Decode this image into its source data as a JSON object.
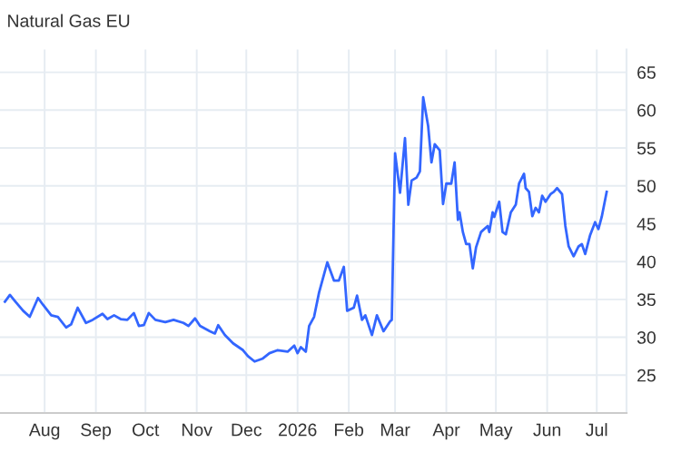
{
  "chart_data": {
    "type": "line",
    "title": "Natural Gas EU",
    "x": [
      "2025-07-08",
      "2025-07-11",
      "2025-07-14",
      "2025-07-19",
      "2025-07-23",
      "2025-07-28",
      "2025-07-31",
      "2025-08-05",
      "2025-08-09",
      "2025-08-14",
      "2025-08-17",
      "2025-08-21",
      "2025-08-26",
      "2025-08-30",
      "2025-09-05",
      "2025-09-08",
      "2025-09-12",
      "2025-09-16",
      "2025-09-20",
      "2025-09-24",
      "2025-09-27",
      "2025-09-30",
      "2025-10-03",
      "2025-10-07",
      "2025-10-13",
      "2025-10-18",
      "2025-10-24",
      "2025-10-27",
      "2025-10-31",
      "2025-11-03",
      "2025-11-09",
      "2025-11-12",
      "2025-11-14",
      "2025-11-18",
      "2025-11-23",
      "2025-11-29",
      "2025-12-02",
      "2025-12-06",
      "2025-12-11",
      "2025-12-15",
      "2025-12-20",
      "2025-12-26",
      "2025-12-30",
      "2026-01-01",
      "2026-01-03",
      "2026-01-06",
      "2026-01-08",
      "2026-01-11",
      "2026-01-14",
      "2026-01-17",
      "2026-01-19",
      "2026-01-21",
      "2026-01-23",
      "2026-01-26",
      "2026-01-29",
      "2026-01-31",
      "2026-02-04",
      "2026-02-06",
      "2026-02-09",
      "2026-02-11",
      "2026-02-15",
      "2026-02-18",
      "2026-02-22",
      "2026-02-26",
      "2026-02-27",
      "2026-03-01",
      "2026-03-04",
      "2026-03-07",
      "2026-03-09",
      "2026-03-11",
      "2026-03-14",
      "2026-03-16",
      "2026-03-18",
      "2026-03-21",
      "2026-03-23",
      "2026-03-25",
      "2026-03-28",
      "2026-03-30",
      "2026-04-01",
      "2026-04-04",
      "2026-04-06",
      "2026-04-08",
      "2026-04-09",
      "2026-04-11",
      "2026-04-13",
      "2026-04-15",
      "2026-04-17",
      "2026-04-19",
      "2026-04-22",
      "2026-04-26",
      "2026-04-27",
      "2026-04-29",
      "2026-04-30",
      "2026-05-03",
      "2026-05-05",
      "2026-05-07",
      "2026-05-10",
      "2026-05-13",
      "2026-05-15",
      "2026-05-18",
      "2026-05-19",
      "2026-05-21",
      "2026-05-23",
      "2026-05-25",
      "2026-05-27",
      "2026-05-29",
      "2026-05-31",
      "2026-06-03",
      "2026-06-05",
      "2026-06-07",
      "2026-06-10",
      "2026-06-12",
      "2026-06-14",
      "2026-06-17",
      "2026-06-20",
      "2026-06-22",
      "2026-06-24",
      "2026-06-27",
      "2026-06-30",
      "2026-07-02",
      "2026-07-04",
      "2026-07-07"
    ],
    "series": [
      {
        "color": "#3366ff",
        "values": [
          34.7,
          35.6,
          34.8,
          33.5,
          32.7,
          35.2,
          34.3,
          32.9,
          32.7,
          31.3,
          31.7,
          33.9,
          31.9,
          32.3,
          33.1,
          32.4,
          32.9,
          32.4,
          32.3,
          33.2,
          31.5,
          31.6,
          33.2,
          32.3,
          32.0,
          32.3,
          31.9,
          31.5,
          32.5,
          31.5,
          30.8,
          30.5,
          31.6,
          30.3,
          29.2,
          28.3,
          27.5,
          26.8,
          27.2,
          27.9,
          28.3,
          28.1,
          28.9,
          27.9,
          28.7,
          28.1,
          31.5,
          32.7,
          35.9,
          38.3,
          39.9,
          38.7,
          37.5,
          37.5,
          39.3,
          33.5,
          33.9,
          35.5,
          32.3,
          32.9,
          30.3,
          32.9,
          30.8,
          32.1,
          32.3,
          54.3,
          49.1,
          56.3,
          47.5,
          50.7,
          51.1,
          51.9,
          61.7,
          57.9,
          53.1,
          55.5,
          54.7,
          47.6,
          50.3,
          50.3,
          53.1,
          45.5,
          46.5,
          43.9,
          42.3,
          42.3,
          39.1,
          41.9,
          43.9,
          44.7,
          43.9,
          46.5,
          45.9,
          47.9,
          43.9,
          43.6,
          46.5,
          47.5,
          50.3,
          51.6,
          49.7,
          49.2,
          46.0,
          47.1,
          46.5,
          48.7,
          47.9,
          48.9,
          49.2,
          49.7,
          48.9,
          44.7,
          42.0,
          40.7,
          42.0,
          42.3,
          41.0,
          43.5,
          45.2,
          44.3,
          45.9,
          49.2
        ]
      }
    ],
    "xlim": [
      "2025-07-05",
      "2026-07-19"
    ],
    "xticks": [
      {
        "value": "2025-08-01",
        "label": "Aug"
      },
      {
        "value": "2025-09-01",
        "label": "Sep"
      },
      {
        "value": "2025-10-01",
        "label": "Oct"
      },
      {
        "value": "2025-11-01",
        "label": "Nov"
      },
      {
        "value": "2025-12-01",
        "label": "Dec"
      },
      {
        "value": "2026-01-01",
        "label": "2026"
      },
      {
        "value": "2026-02-01",
        "label": "Feb"
      },
      {
        "value": "2026-03-01",
        "label": "Mar"
      },
      {
        "value": "2026-04-01",
        "label": "Apr"
      },
      {
        "value": "2026-05-01",
        "label": "May"
      },
      {
        "value": "2026-06-01",
        "label": "Jun"
      },
      {
        "value": "2026-07-01",
        "label": "Jul"
      }
    ],
    "ylim": [
      20,
      68
    ],
    "yticks": [
      25,
      30,
      35,
      40,
      45,
      50,
      55,
      60,
      65
    ],
    "grid": true,
    "line_style": "solid",
    "marker": "none"
  }
}
